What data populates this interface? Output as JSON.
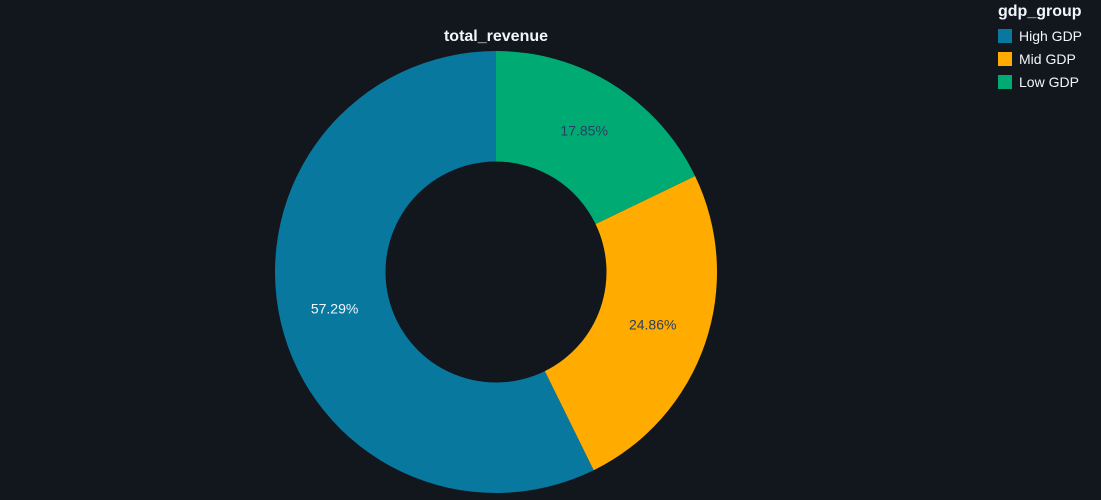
{
  "chart_data": {
    "type": "pie",
    "hole": 0.5,
    "title": "total_revenue",
    "legend": {
      "title": "gdp_group",
      "position": "top-right"
    },
    "slices": [
      {
        "label": "High GDP",
        "value": 57.29,
        "text": "57.29%",
        "color": "#08789f",
        "text_color": "#f2f5fa"
      },
      {
        "label": "Mid GDP",
        "value": 24.86,
        "text": "24.86%",
        "color": "#ffab00",
        "text_color": "#2a3f5f"
      },
      {
        "label": "Low GDP",
        "value": 17.85,
        "text": "17.85%",
        "color": "#00aa73",
        "text_color": "#2a3f5f"
      }
    ]
  },
  "colors": {
    "background": "#12161d",
    "text": "#f2f5fa"
  }
}
